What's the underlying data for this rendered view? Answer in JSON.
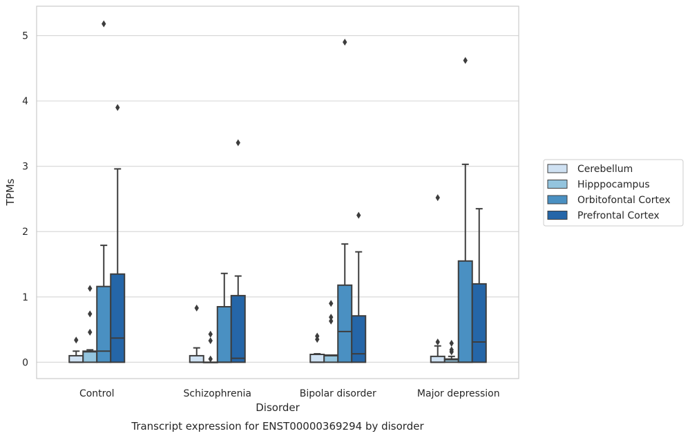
{
  "chart_data": {
    "type": "box",
    "title": "Transcript expression for ENST00000369294 by disorder",
    "xlabel": "Disorder",
    "ylabel": "TPMs",
    "ylim": [
      -0.25,
      5.45
    ],
    "yticks": [
      0,
      1,
      2,
      3,
      4,
      5
    ],
    "grid": true,
    "legend_position": "right",
    "categories": [
      "Control",
      "Schizophrenia",
      "Bipolar disorder",
      "Major depression"
    ],
    "series": [
      {
        "name": "Cerebellum",
        "color": "#cfe1f2",
        "boxes": [
          {
            "whisker_low": 0,
            "q1": 0,
            "median": 0,
            "q3": 0.1,
            "whisker_high": 0.17,
            "outliers": [
              0.34
            ]
          },
          {
            "whisker_low": 0,
            "q1": 0,
            "median": 0,
            "q3": 0.1,
            "whisker_high": 0.22,
            "outliers": [
              0.83
            ]
          },
          {
            "whisker_low": 0,
            "q1": 0,
            "median": 0,
            "q3": 0.12,
            "whisker_high": 0.13,
            "outliers": [
              0.35,
              0.4
            ]
          },
          {
            "whisker_low": 0,
            "q1": 0,
            "median": 0,
            "q3": 0.09,
            "whisker_high": 0.25,
            "outliers": [
              0.31,
              2.52
            ]
          }
        ]
      },
      {
        "name": "Hipppocampus",
        "color": "#93c4de",
        "boxes": [
          {
            "whisker_low": 0,
            "q1": 0,
            "median": 0.16,
            "q3": 0.17,
            "whisker_high": 0.19,
            "outliers": [
              0.46,
              0.74,
              1.13
            ]
          },
          {
            "whisker_low": 0,
            "q1": 0,
            "median": 0,
            "q3": 0,
            "whisker_high": 0,
            "outliers": [
              0.05,
              0.33,
              0.43
            ]
          },
          {
            "whisker_low": 0,
            "q1": 0,
            "median": 0.1,
            "q3": 0.11,
            "whisker_high": 0.11,
            "outliers": [
              0.63,
              0.69,
              0.9
            ]
          },
          {
            "whisker_low": 0,
            "q1": 0,
            "median": 0.04,
            "q3": 0.05,
            "whisker_high": 0.09,
            "outliers": [
              0.16,
              0.19,
              0.29
            ]
          }
        ]
      },
      {
        "name": "Orbitofontal Cortex",
        "color": "#4a90c2",
        "boxes": [
          {
            "whisker_low": 0,
            "q1": 0,
            "median": 0.17,
            "q3": 1.16,
            "whisker_high": 1.79,
            "outliers": [
              5.18
            ]
          },
          {
            "whisker_low": 0,
            "q1": 0,
            "median": 0,
            "q3": 0.85,
            "whisker_high": 1.36,
            "outliers": []
          },
          {
            "whisker_low": 0,
            "q1": 0,
            "median": 0.47,
            "q3": 1.18,
            "whisker_high": 1.81,
            "outliers": [
              4.9
            ]
          },
          {
            "whisker_low": 0,
            "q1": 0,
            "median": 0,
            "q3": 1.55,
            "whisker_high": 3.03,
            "outliers": [
              4.62
            ]
          }
        ]
      },
      {
        "name": "Prefrontal Cortex",
        "color": "#2566a8",
        "boxes": [
          {
            "whisker_low": 0,
            "q1": 0,
            "median": 0.37,
            "q3": 1.35,
            "whisker_high": 2.96,
            "outliers": [
              3.9
            ]
          },
          {
            "whisker_low": 0,
            "q1": 0,
            "median": 0.06,
            "q3": 1.02,
            "whisker_high": 1.32,
            "outliers": [
              3.36
            ]
          },
          {
            "whisker_low": 0,
            "q1": 0,
            "median": 0.13,
            "q3": 0.71,
            "whisker_high": 1.69,
            "outliers": [
              2.25
            ]
          },
          {
            "whisker_low": 0,
            "q1": 0,
            "median": 0.31,
            "q3": 1.2,
            "whisker_high": 2.35,
            "outliers": []
          }
        ]
      }
    ]
  }
}
